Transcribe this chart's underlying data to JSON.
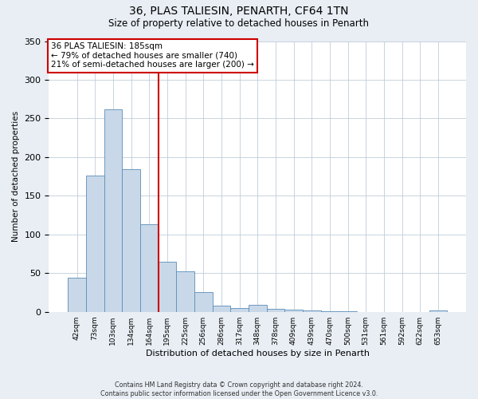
{
  "title1": "36, PLAS TALIESIN, PENARTH, CF64 1TN",
  "title2": "Size of property relative to detached houses in Penarth",
  "xlabel": "Distribution of detached houses by size in Penarth",
  "ylabel": "Number of detached properties",
  "bar_labels": [
    "42sqm",
    "73sqm",
    "103sqm",
    "134sqm",
    "164sqm",
    "195sqm",
    "225sqm",
    "256sqm",
    "286sqm",
    "317sqm",
    "348sqm",
    "378sqm",
    "409sqm",
    "439sqm",
    "470sqm",
    "500sqm",
    "531sqm",
    "561sqm",
    "592sqm",
    "622sqm",
    "653sqm"
  ],
  "bar_values": [
    44,
    176,
    262,
    184,
    113,
    65,
    52,
    25,
    8,
    5,
    9,
    4,
    3,
    2,
    1,
    1,
    0,
    0,
    0,
    0,
    2
  ],
  "bar_color": "#c8d8e8",
  "bar_edge_color": "#5b8db8",
  "vline_x": 4.5,
  "vline_color": "#cc0000",
  "annotation_title": "36 PLAS TALIESIN: 185sqm",
  "annotation_line1": "← 79% of detached houses are smaller (740)",
  "annotation_line2": "21% of semi-detached houses are larger (200) →",
  "annotation_box_color": "#cc0000",
  "ylim": [
    0,
    350
  ],
  "yticks": [
    0,
    50,
    100,
    150,
    200,
    250,
    300,
    350
  ],
  "footnote1": "Contains HM Land Registry data © Crown copyright and database right 2024.",
  "footnote2": "Contains public sector information licensed under the Open Government Licence v3.0.",
  "bg_color": "#e8eef4",
  "plot_bg_color": "#ffffff",
  "grid_color": "#c0cdd8"
}
